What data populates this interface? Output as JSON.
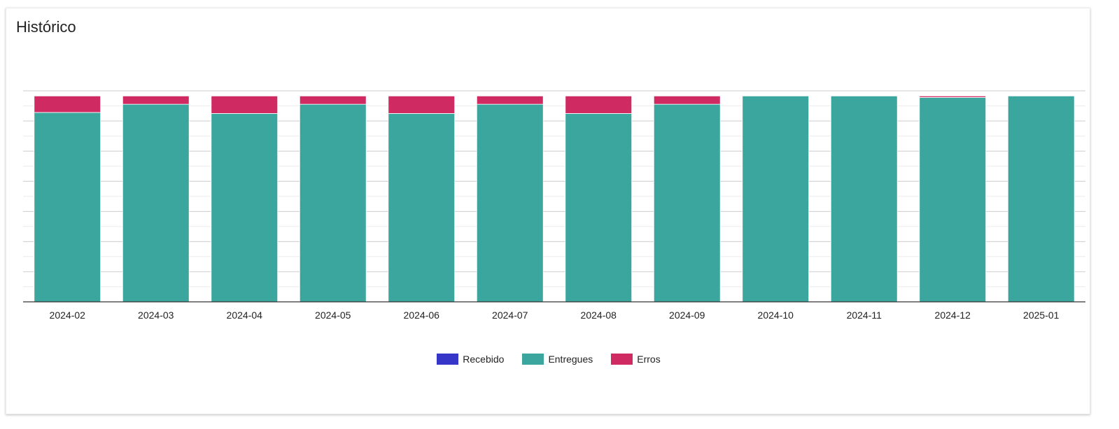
{
  "card": {
    "title": "Histórico"
  },
  "chart_data": {
    "type": "bar",
    "stacked": true,
    "categories": [
      "2024-02",
      "2024-03",
      "2024-04",
      "2024-05",
      "2024-06",
      "2024-07",
      "2024-08",
      "2024-09",
      "2024-10",
      "2024-11",
      "2024-12",
      "2025-01"
    ],
    "series": [
      {
        "name": "Recebido",
        "color": "#3636c8",
        "values": [
          0,
          0,
          0,
          0,
          0,
          0,
          0,
          0,
          0,
          0,
          0,
          0
        ]
      },
      {
        "name": "Entregues",
        "color": "#3aa69d",
        "values": [
          92.0,
          96.0,
          91.5,
          96.0,
          91.5,
          96.0,
          91.5,
          96.0,
          100,
          100,
          99.3,
          100
        ]
      },
      {
        "name": "Erros",
        "color": "#cf2a61",
        "values": [
          8.0,
          4.0,
          8.5,
          4.0,
          8.5,
          4.0,
          8.5,
          4.0,
          0,
          0,
          0.7,
          0
        ]
      }
    ],
    "ylim": [
      0,
      102.5
    ],
    "grid": true,
    "legend": "bottom-center",
    "xlabel": "",
    "ylabel": ""
  }
}
